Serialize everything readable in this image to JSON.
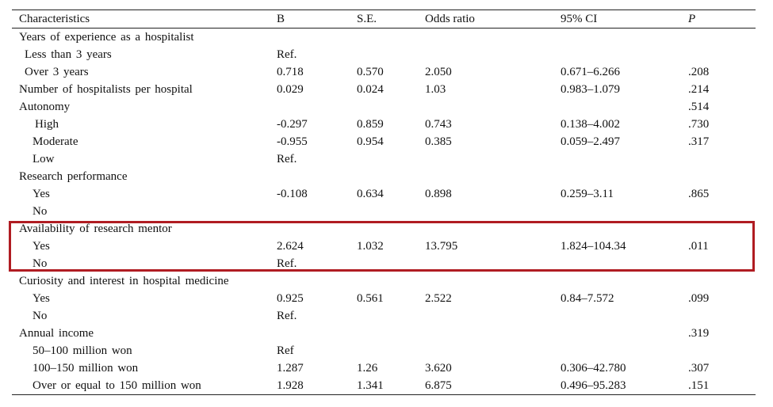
{
  "table": {
    "columns": [
      "Characteristics",
      "B",
      "S.E.",
      "Odds  ratio",
      "95%  CI",
      "P"
    ],
    "rows": [
      {
        "label": "Years  of  experience  as  a  hospitalist",
        "indent": 0,
        "b": "",
        "se": "",
        "or": "",
        "ci": "",
        "p": ""
      },
      {
        "label": "Less  than  3  years",
        "indent": 1,
        "b": "Ref.",
        "se": "",
        "or": "",
        "ci": "",
        "p": ""
      },
      {
        "label": "Over  3  years",
        "indent": 1,
        "b": "0.718",
        "se": "0.570",
        "or": "2.050",
        "ci": "0.671–6.266",
        "p": ".208"
      },
      {
        "label": "Number  of  hospitalists  per  hospital",
        "indent": 0,
        "b": "0.029",
        "se": "0.024",
        "or": "1.03",
        "ci": "0.983–1.079",
        "p": ".214"
      },
      {
        "label": "Autonomy",
        "indent": 0,
        "b": "",
        "se": "",
        "or": "",
        "ci": "",
        "p": ".514"
      },
      {
        "label": "High",
        "indent": 3,
        "b": "-0.297",
        "se": "0.859",
        "or": "0.743",
        "ci": "0.138–4.002",
        "p": ".730"
      },
      {
        "label": "Moderate",
        "indent": 2,
        "b": "-0.955",
        "se": "0.954",
        "or": "0.385",
        "ci": "0.059–2.497",
        "p": ".317"
      },
      {
        "label": "Low",
        "indent": 2,
        "b": "Ref.",
        "se": "",
        "or": "",
        "ci": "",
        "p": ""
      },
      {
        "label": "Research  performance",
        "indent": 0,
        "b": "",
        "se": "",
        "or": "",
        "ci": "",
        "p": ""
      },
      {
        "label": "Yes",
        "indent": 2,
        "b": "-0.108",
        "se": "0.634",
        "or": "0.898",
        "ci": "0.259–3.11",
        "p": ".865"
      },
      {
        "label": "No",
        "indent": 2,
        "b": "",
        "se": "",
        "or": "",
        "ci": "",
        "p": ""
      },
      {
        "label": "Availability  of  research  mentor",
        "indent": 0,
        "b": "",
        "se": "",
        "or": "",
        "ci": "",
        "p": ""
      },
      {
        "label": "Yes",
        "indent": 2,
        "b": "2.624",
        "se": "1.032",
        "or": "13.795",
        "ci": "1.824–104.34",
        "p": ".011"
      },
      {
        "label": "No",
        "indent": 2,
        "b": "Ref.",
        "se": "",
        "or": "",
        "ci": "",
        "p": ""
      },
      {
        "label": "Curiosity  and  interest  in  hospital  medicine",
        "indent": 0,
        "b": "",
        "se": "",
        "or": "",
        "ci": "",
        "p": ""
      },
      {
        "label": "Yes",
        "indent": 2,
        "b": "0.925",
        "se": "0.561",
        "or": "2.522",
        "ci": "0.84–7.572",
        "p": ".099"
      },
      {
        "label": "No",
        "indent": 2,
        "b": "Ref.",
        "se": "",
        "or": "",
        "ci": "",
        "p": ""
      },
      {
        "label": "Annual  income",
        "indent": 0,
        "b": "",
        "se": "",
        "or": "",
        "ci": "",
        "p": ".319"
      },
      {
        "label": "50–100  million  won",
        "indent": 2,
        "b": "Ref",
        "se": "",
        "or": "",
        "ci": "",
        "p": ""
      },
      {
        "label": "100–150  million  won",
        "indent": 2,
        "b": "1.287",
        "se": "1.26",
        "or": "3.620",
        "ci": "0.306–42.780",
        "p": ".307"
      },
      {
        "label": "Over  or  equal  to  150  million  won",
        "indent": 2,
        "b": "1.928",
        "se": "1.341",
        "or": "6.875",
        "ci": "0.496–95.283",
        "p": ".151"
      }
    ]
  },
  "highlight": {
    "color": "#b01c22",
    "group": "Availability  of  research  mentor"
  }
}
